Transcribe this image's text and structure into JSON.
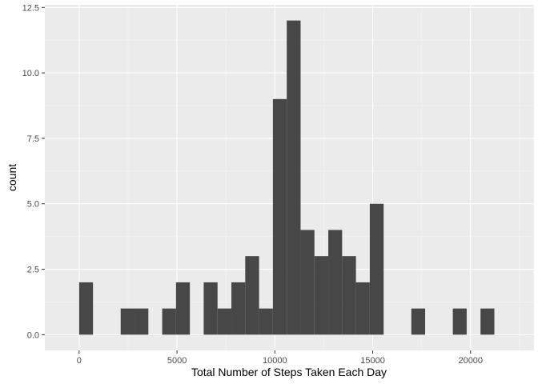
{
  "chart_data": {
    "type": "bar",
    "title": "",
    "xlabel": "Total Number of Steps Taken Each Day",
    "ylabel": "count",
    "xlim": [
      -1753.5,
      23241.5
    ],
    "ylim": [
      -0.6,
      12.6
    ],
    "x_ticks": [
      0,
      5000,
      10000,
      15000,
      20000
    ],
    "x_tick_labels": [
      "0",
      "5000",
      "10000",
      "15000",
      "20000"
    ],
    "y_ticks": [
      0,
      2.5,
      5,
      7.5,
      10,
      12.5
    ],
    "y_tick_labels": [
      "0.0",
      "2.5",
      "5.0",
      "7.5",
      "10.0",
      "12.5"
    ],
    "bin_width": 707.2,
    "bin_start": 0,
    "counts": [
      2,
      0,
      0,
      1,
      1,
      0,
      1,
      2,
      0,
      2,
      1,
      2,
      3,
      1,
      9,
      12,
      4,
      3,
      4,
      3,
      2,
      5,
      0,
      0,
      1,
      0,
      0,
      1,
      0,
      1
    ],
    "grid": true,
    "legend": "none",
    "colors": {
      "panel_background": "#ebebeb",
      "major_grid": "#ffffff",
      "bar_fill": "#474747",
      "tick_label": "#4d4d4d"
    }
  }
}
